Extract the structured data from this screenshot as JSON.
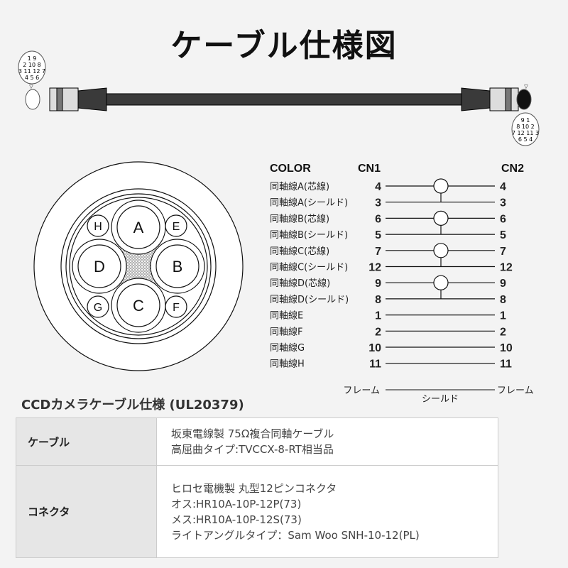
{
  "title": "ケーブル仕様図",
  "connector_pins": {
    "cn1_rows": [
      "1 9",
      "2 10 8",
      "3 11 12 7",
      "4 5 6"
    ],
    "cn2_rows": [
      "9 1",
      "8 10 2",
      "7 12 11 3",
      "6 5 4"
    ]
  },
  "cross_section": {
    "large": [
      "A",
      "B",
      "C",
      "D"
    ],
    "small": [
      "E",
      "F",
      "G",
      "H"
    ]
  },
  "wiring": {
    "header": {
      "color": "COLOR",
      "cn1": "CN1",
      "cn2": "CN2"
    },
    "rows": [
      {
        "label": "同軸線A(芯線)",
        "cn1": "4",
        "cn2": "4",
        "pair": "core"
      },
      {
        "label": "同軸線A(シールド)",
        "cn1": "3",
        "cn2": "3",
        "pair": "shield"
      },
      {
        "label": "同軸線B(芯線)",
        "cn1": "6",
        "cn2": "6",
        "pair": "core"
      },
      {
        "label": "同軸線B(シールド)",
        "cn1": "5",
        "cn2": "5",
        "pair": "shield"
      },
      {
        "label": "同軸線C(芯線)",
        "cn1": "7",
        "cn2": "7",
        "pair": "core"
      },
      {
        "label": "同軸線C(シールド)",
        "cn1": "12",
        "cn2": "12",
        "pair": "shield"
      },
      {
        "label": "同軸線D(芯線)",
        "cn1": "9",
        "cn2": "9",
        "pair": "core"
      },
      {
        "label": "同軸線D(シールド)",
        "cn1": "8",
        "cn2": "8",
        "pair": "shield"
      },
      {
        "label": "同軸線E",
        "cn1": "1",
        "cn2": "1",
        "pair": ""
      },
      {
        "label": "同軸線F",
        "cn1": "2",
        "cn2": "2",
        "pair": ""
      },
      {
        "label": "同軸線G",
        "cn1": "10",
        "cn2": "10",
        "pair": ""
      },
      {
        "label": "同軸線H",
        "cn1": "11",
        "cn2": "11",
        "pair": ""
      }
    ],
    "frame": {
      "left": "フレーム",
      "right": "フレーム",
      "shield": "シールド"
    }
  },
  "spec": {
    "title": "CCDカメラケーブル仕様 (UL20379)",
    "rows": [
      {
        "key": "ケーブル",
        "lines": [
          "坂東電線製 75Ω複合同軸ケーブル",
          "高屈曲タイプ:TVCCX-8-RT相当品"
        ]
      },
      {
        "key": "コネクタ",
        "lines": [
          "ヒロセ電機製 丸型12ピンコネクタ",
          "オス:HR10A-10P-12P(73)",
          "メス:HR10A-10P-12S(73)",
          "ライトアングルタイプ：Sam Woo SNH-10-12(PL)"
        ]
      }
    ]
  }
}
